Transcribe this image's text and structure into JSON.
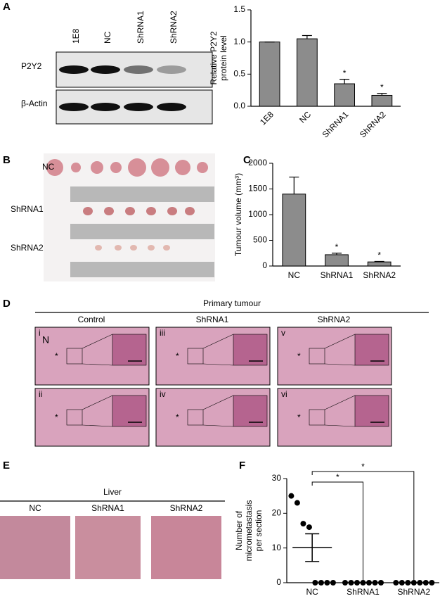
{
  "panel_labels": [
    "A",
    "B",
    "C",
    "D",
    "E",
    "F"
  ],
  "blot": {
    "lanes": [
      "1E8",
      "NC",
      "ShRNA1",
      "ShRNA2"
    ],
    "rows": [
      "P2Y2",
      "β-Actin"
    ]
  },
  "photo": {
    "rows": [
      "NC",
      "ShRNA1",
      "ShRNA2"
    ]
  },
  "histology": {
    "title": "Primary tumour",
    "columns": [
      "Control",
      "ShRNA1",
      "ShRNA2"
    ],
    "panels": [
      "i",
      "ii",
      "iii",
      "iv",
      "v",
      "vi"
    ],
    "annotation": "N",
    "marker": "*"
  },
  "liver": {
    "title": "Liver",
    "columns": [
      "NC",
      "ShRNA1",
      "ShRNA2"
    ]
  },
  "chart_data": [
    {
      "type": "bar",
      "ylabel": [
        "Relative P2Y2",
        "protein level"
      ],
      "categories": [
        "1E8",
        "NC",
        "ShRNA1",
        "ShRNA2"
      ],
      "values": [
        1.0,
        1.05,
        0.35,
        0.17
      ],
      "errors": [
        0,
        0.05,
        0.07,
        0.03
      ],
      "annotations": [
        null,
        null,
        "*",
        "*"
      ],
      "color": "#8c8c8c",
      "ylim": [
        0,
        1.5
      ],
      "yticks": [
        {
          "value": 0,
          "label": "0.0"
        },
        0.5,
        {
          "value": 1,
          "label": "1.0"
        },
        1.5
      ],
      "xtick_rotation": 45
    },
    {
      "type": "bar",
      "ylabel": [
        "Tumour volume (mm³)"
      ],
      "categories": [
        "NC",
        "ShRNA1",
        "ShRNA2"
      ],
      "values": [
        1400,
        220,
        80
      ],
      "errors": [
        330,
        30,
        10
      ],
      "annotations": [
        null,
        "*",
        "*"
      ],
      "color": "#8c8c8c",
      "ylim": [
        0,
        2000
      ],
      "yticks": [
        0,
        500,
        1000,
        1500,
        2000
      ],
      "xtick_rotation": 0
    },
    {
      "type": "dot",
      "ylabel": [
        "Number of",
        "micrometastasis",
        "per section"
      ],
      "categories": [
        "NC",
        "ShRNA1",
        "ShRNA2"
      ],
      "values": [
        [
          25,
          23,
          17,
          16,
          0,
          0,
          0,
          0
        ],
        [
          0,
          0,
          0,
          0,
          0,
          0,
          0
        ],
        [
          0,
          0,
          0,
          0,
          0,
          0,
          0
        ]
      ],
      "means": [
        10.1,
        0,
        0
      ],
      "sems": [
        4,
        0,
        0
      ],
      "color": "#000000",
      "comparisons": [
        {
          "from": 0,
          "to": 1,
          "label": "*"
        },
        {
          "from": 0,
          "to": 2,
          "label": "*"
        }
      ],
      "ylim": [
        0,
        30
      ],
      "yticks": [
        0,
        10,
        20,
        30
      ]
    }
  ]
}
